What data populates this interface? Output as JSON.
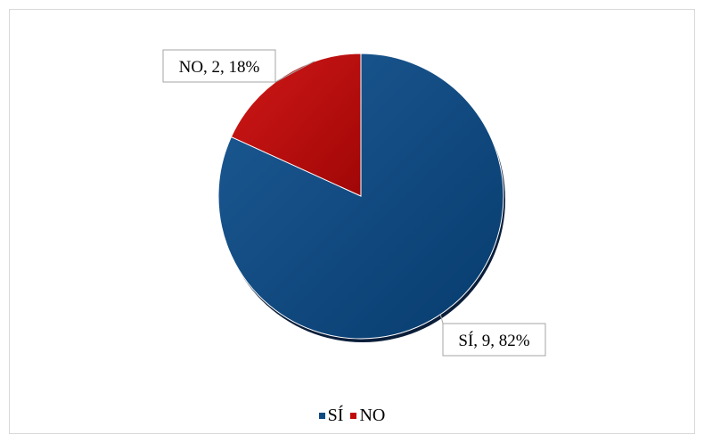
{
  "chart_data": {
    "type": "pie",
    "categories": [
      "SÍ",
      "NO"
    ],
    "values": [
      9,
      2
    ],
    "percentages": [
      82,
      18
    ],
    "data_labels": [
      "SÍ, 9, 82%",
      "NO, 2, 18%"
    ],
    "colors": [
      "#0f4a80",
      "#c00a0a"
    ],
    "legend": [
      "SÍ",
      "NO"
    ],
    "legend_position": "bottom",
    "start_angle": "12 o'clock, clockwise"
  }
}
